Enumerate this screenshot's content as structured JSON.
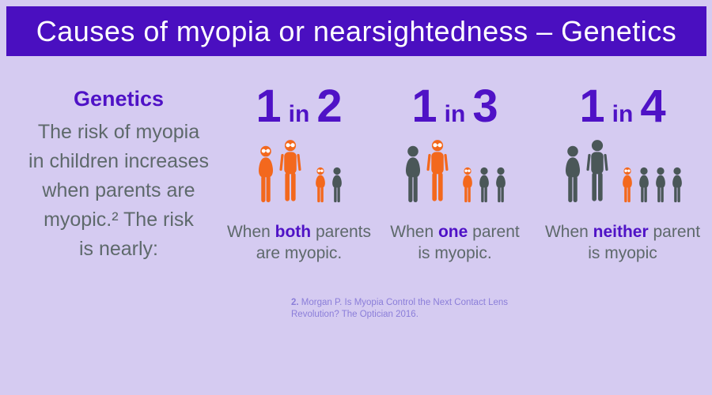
{
  "title": "Causes of myopia or nearsightedness – Genetics",
  "colors": {
    "banner_purple": "#4a0fc0",
    "background_lavender": "#d5cbf1",
    "heading_purple": "#4f12c6",
    "text_gray": "#5e696b",
    "myopic_orange": "#f3681d",
    "figure_gray": "#4a5758",
    "glasses_white": "#ffffff",
    "footnote_purple": "#8b7ed9"
  },
  "intro": {
    "heading": "Genetics",
    "lines": [
      "The risk of myopia",
      "in children increases",
      "when parents are",
      "myopic.² The risk",
      "is nearly:"
    ]
  },
  "columns": [
    {
      "ratio": {
        "numerator": "1",
        "preposition": "in",
        "denominator": "2"
      },
      "caption": {
        "prefix": "When ",
        "highlight": "both",
        "suffix": " parents",
        "line2": "are myopic."
      },
      "figures": [
        {
          "kind": "adult-female",
          "color": "orange",
          "glasses": true
        },
        {
          "kind": "adult-male",
          "color": "orange",
          "glasses": true
        },
        {
          "kind": "child",
          "color": "orange",
          "glasses": true,
          "gap_before": true
        },
        {
          "kind": "child",
          "color": "gray",
          "glasses": false
        }
      ]
    },
    {
      "ratio": {
        "numerator": "1",
        "preposition": "in",
        "denominator": "3"
      },
      "caption": {
        "prefix": "When ",
        "highlight": "one",
        "suffix": " parent",
        "line2": "is myopic."
      },
      "figures": [
        {
          "kind": "adult-female",
          "color": "gray",
          "glasses": false
        },
        {
          "kind": "adult-male",
          "color": "orange",
          "glasses": true
        },
        {
          "kind": "child",
          "color": "orange",
          "glasses": true,
          "gap_before": true
        },
        {
          "kind": "child",
          "color": "gray",
          "glasses": false
        },
        {
          "kind": "child",
          "color": "gray",
          "glasses": false
        }
      ]
    },
    {
      "ratio": {
        "numerator": "1",
        "preposition": "in",
        "denominator": "4"
      },
      "caption": {
        "prefix": "When ",
        "highlight": "neither",
        "suffix": " parent",
        "line2": "is myopic"
      },
      "figures": [
        {
          "kind": "adult-female",
          "color": "gray",
          "glasses": false
        },
        {
          "kind": "adult-male",
          "color": "gray",
          "glasses": false
        },
        {
          "kind": "child",
          "color": "orange",
          "glasses": true,
          "gap_before": true
        },
        {
          "kind": "child",
          "color": "gray",
          "glasses": false
        },
        {
          "kind": "child",
          "color": "gray",
          "glasses": false
        },
        {
          "kind": "child",
          "color": "gray",
          "glasses": false
        }
      ]
    }
  ],
  "footnote": {
    "marker": "2.",
    "line1": "Morgan P. Is Myopia Control the Next Contact Lens",
    "line2": "Revolution? The Optician 2016."
  }
}
